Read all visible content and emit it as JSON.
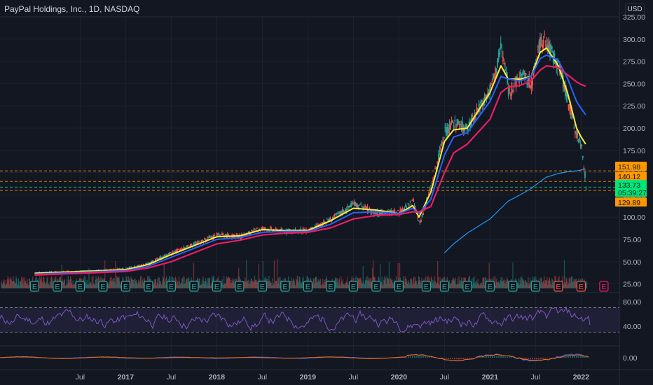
{
  "header": {
    "title": "PayPal Holdings, Inc., 1D, NASDAQ",
    "currency": "USD"
  },
  "colors": {
    "background": "#131722",
    "grid": "#1e222d",
    "text": "#b2b5be",
    "up": "#26a69a",
    "down": "#ef5350",
    "ema_fast": "#ffeb3b",
    "ema_mid": "#2962ff",
    "ema_slow": "#e91e63",
    "ma_long": "#2196f3",
    "rsi": "#7e57c2",
    "macd": "#2962ff",
    "signal": "#ff6d00"
  },
  "chart_data": {
    "type": "line",
    "title": "PayPal Holdings, Inc., 1D, NASDAQ",
    "ylabel": "USD",
    "ylim": [
      20,
      325
    ],
    "grid": true,
    "x_ticks": [
      "Jul",
      "2017",
      "Jul",
      "2018",
      "Jul",
      "2019",
      "Jul",
      "2020",
      "Jul",
      "2021",
      "Jul",
      "2022"
    ],
    "y_ticks": [
      "325.00",
      "300.00",
      "275.00",
      "250.00",
      "225.00",
      "200.00",
      "175.00",
      "150.00",
      "125.00",
      "100.00",
      "75.00",
      "50.00",
      "25.00"
    ],
    "x": [
      2016.0,
      2016.25,
      2016.5,
      2016.75,
      2017.0,
      2017.25,
      2017.5,
      2017.75,
      2018.0,
      2018.25,
      2018.5,
      2018.75,
      2019.0,
      2019.25,
      2019.5,
      2019.75,
      2020.0,
      2020.15,
      2020.22,
      2020.35,
      2020.5,
      2020.6,
      2020.75,
      2021.0,
      2021.12,
      2021.2,
      2021.33,
      2021.45,
      2021.55,
      2021.62,
      2021.75,
      2021.85,
      2021.95,
      2022.0,
      2022.05
    ],
    "series": [
      {
        "name": "",
        "kind": "price",
        "values": [
          37,
          38,
          39,
          40,
          42,
          48,
          60,
          70,
          80,
          78,
          88,
          84,
          85,
          98,
          115,
          105,
          105,
          118,
          92,
          135,
          195,
          205,
          200,
          245,
          290,
          240,
          260,
          250,
          300,
          295,
          270,
          230,
          190,
          180,
          133.73
        ]
      },
      {
        "name": "",
        "kind": "ema20",
        "values": [
          37,
          38,
          39,
          40,
          41,
          47,
          58,
          68,
          78,
          79,
          86,
          85,
          85,
          96,
          110,
          108,
          104,
          113,
          100,
          128,
          185,
          198,
          200,
          240,
          270,
          255,
          255,
          258,
          285,
          290,
          270,
          240,
          200,
          190,
          182
        ]
      },
      {
        "name": "",
        "kind": "ema50",
        "values": [
          36,
          37,
          38,
          39,
          40,
          45,
          55,
          65,
          75,
          77,
          83,
          84,
          84,
          92,
          105,
          106,
          104,
          110,
          104,
          120,
          170,
          190,
          195,
          230,
          258,
          255,
          253,
          258,
          278,
          282,
          276,
          256,
          230,
          222,
          215
        ]
      },
      {
        "name": "",
        "kind": "ema100",
        "values": [
          35,
          36,
          37,
          38,
          39,
          43,
          50,
          60,
          70,
          74,
          80,
          82,
          83,
          88,
          98,
          102,
          103,
          106,
          106,
          112,
          150,
          172,
          182,
          210,
          240,
          246,
          248,
          253,
          265,
          270,
          268,
          260,
          252,
          249,
          247
        ]
      },
      {
        "name": "",
        "kind": "ma200",
        "values": [
          null,
          null,
          null,
          null,
          null,
          null,
          null,
          null,
          null,
          null,
          null,
          null,
          null,
          null,
          null,
          null,
          null,
          null,
          null,
          null,
          60,
          70,
          82,
          98,
          110,
          118,
          125,
          132,
          140,
          145,
          149,
          151,
          152,
          153,
          154
        ]
      }
    ],
    "price_labels": [
      {
        "value": 151.98,
        "text": "151.98",
        "color": "#ff9800"
      },
      {
        "value": 140.12,
        "text": "140.12",
        "color": "#ff9800"
      },
      {
        "value": 133.73,
        "text": "133.73",
        "color": "#00e676",
        "sub": "05:39:27"
      },
      {
        "value": 129.89,
        "text": "129.89",
        "color": "#ff9800"
      }
    ],
    "rsi": {
      "ticks": [
        "80.00",
        "40.00"
      ],
      "levels": [
        70,
        30
      ],
      "ylim": [
        10,
        90
      ],
      "latest": 42
    },
    "macd": {
      "ticks": [
        "0.00"
      ],
      "ylim": [
        -30,
        30
      ]
    },
    "earnings": [
      2016.0,
      2016.25,
      2016.5,
      2016.75,
      2017.0,
      2017.25,
      2017.5,
      2017.75,
      2018.0,
      2018.25,
      2018.5,
      2018.75,
      2019.0,
      2019.25,
      2019.5,
      2019.75,
      2020.0,
      2020.3,
      2020.5,
      2020.75,
      2021.0,
      2021.25,
      2021.5,
      2021.75,
      2022.0,
      2022.25
    ],
    "earnings_label": "E"
  }
}
